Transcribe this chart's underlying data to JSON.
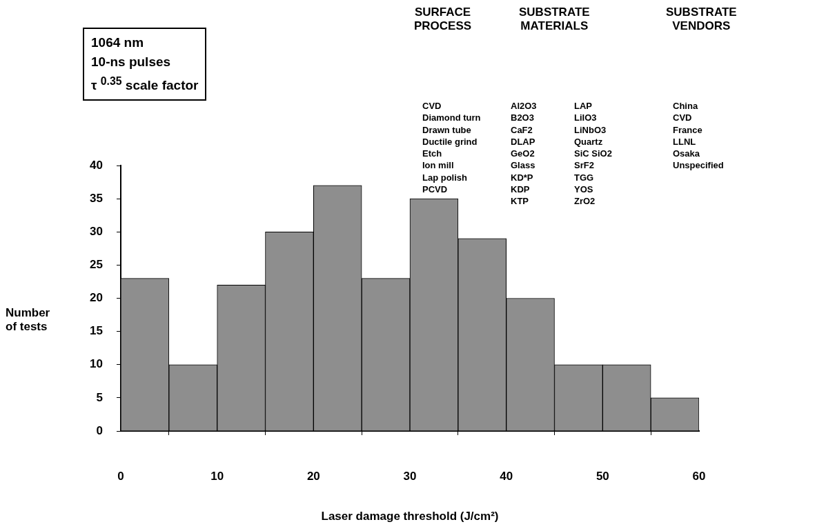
{
  "chart_data": {
    "type": "histogram",
    "xlabel": "Laser damage threshold (J/cm²)",
    "ylabel": "Number of tests",
    "bins": [
      0,
      5,
      10,
      15,
      20,
      25,
      30,
      35,
      40,
      45,
      50,
      55,
      60
    ],
    "values": [
      23,
      10,
      22,
      30,
      37,
      23,
      35,
      29,
      20,
      10,
      10,
      5
    ],
    "color": "#8e8e8e",
    "xlim": [
      0,
      60
    ],
    "xticks": [
      0,
      10,
      20,
      30,
      40,
      50,
      60
    ],
    "ylim": [
      0,
      40
    ],
    "yticks": [
      0,
      5,
      10,
      15,
      20,
      25,
      30,
      35,
      40
    ],
    "annotations": [
      "1064 nm\n10-ns pulses\nτ $^{0.35}$ scale factor",
      "SURFACE\nPROCESS",
      "CVD\nDiamond turn\nDrawn tube\nDuctile grind\nEtch\nIon mill\nLap polish\nPCVD",
      "SUBSTRATE\nMATERIALS",
      "Al2O3\nB2O3\nCaF2\nDLAP\nGeO2\nGlass\nKD*P\nKDP\nKTP",
      "LAP\nLiIO3\nLiNbO3\nQuartz\nSiC SiO2\nSrF2\nTGG\nYOS\nZrO2",
      "SUBSTRATE\nVENDORS",
      "China\nCVD\nFrance\nLLNL\nOsaka\nUnspecified"
    ]
  }
}
